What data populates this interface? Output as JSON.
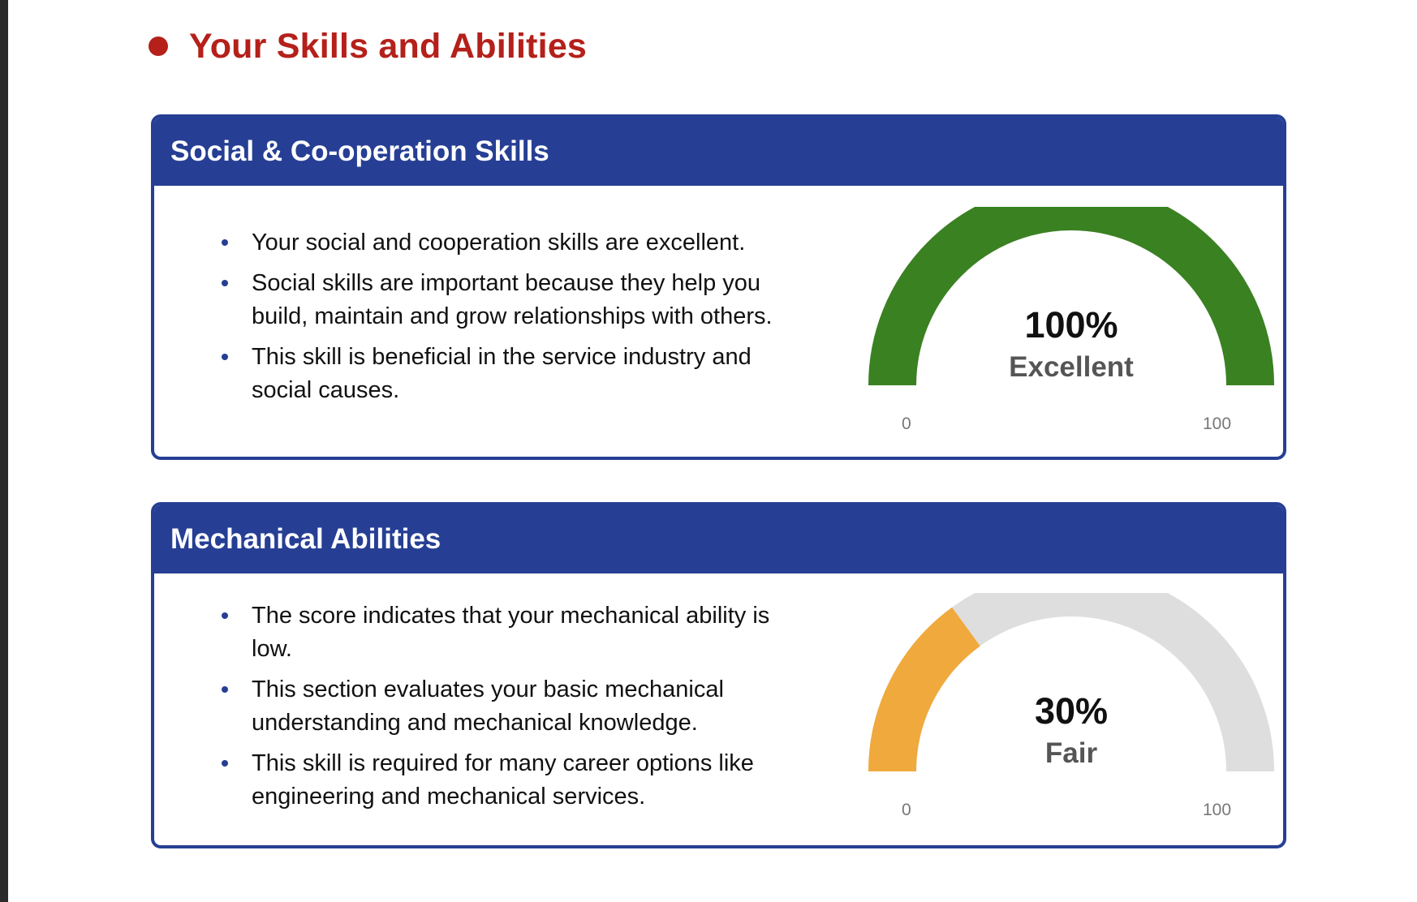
{
  "page": {
    "title": "Your Skills and Abilities",
    "title_color": "#b5201a",
    "card_color": "#263f94"
  },
  "cards": [
    {
      "title": "Social & Co-operation Skills",
      "points": [
        "Your social and cooperation skills are excellent.",
        "Social skills are important because they help you build, maintain and grow relationships with others.",
        "This skill is beneficial in the service industry and social causes."
      ],
      "gauge": {
        "value": 100,
        "value_label": "100%",
        "rating": "Excellent",
        "min_label": "0",
        "max_label": "100",
        "fill_color": "#3a8122",
        "track_color": "#dedede"
      }
    },
    {
      "title": "Mechanical Abilities",
      "points": [
        "The score indicates that your mechanical ability is low.",
        "This section evaluates your basic mechanical understanding and mechanical knowledge.",
        "This skill is required for many career options like engineering and mechanical services."
      ],
      "gauge": {
        "value": 30,
        "value_label": "30%",
        "rating": "Fair",
        "min_label": "0",
        "max_label": "100",
        "fill_color": "#f0a93c",
        "track_color": "#dedede"
      }
    }
  ]
}
